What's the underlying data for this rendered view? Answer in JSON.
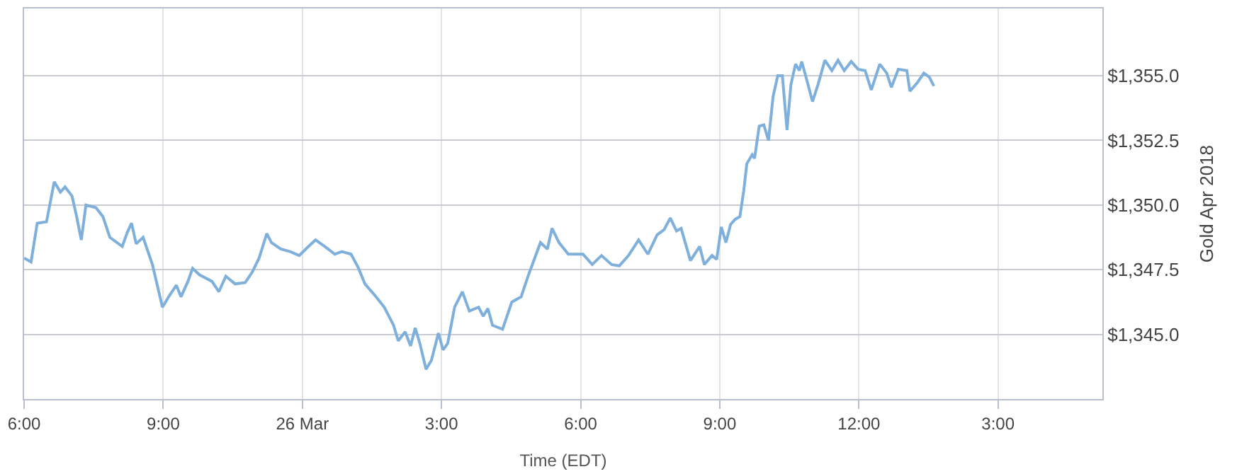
{
  "chart_data": {
    "type": "line",
    "xlabel": "Time (EDT)",
    "ylabel": "Gold Apr 2018",
    "grid": true,
    "xlim": [
      "--03-25T18:00",
      "--03-26T17:15"
    ],
    "xticks": [
      {
        "value": "--03-25T18:00",
        "label": "6:00"
      },
      {
        "value": "--03-25T21:00",
        "label": "9:00"
      },
      {
        "value": "--03-26T00:00",
        "label": "26 Mar"
      },
      {
        "value": "--03-26T03:00",
        "label": "3:00"
      },
      {
        "value": "--03-26T06:00",
        "label": "6:00"
      },
      {
        "value": "--03-26T09:00",
        "label": "9:00"
      },
      {
        "value": "--03-26T12:00",
        "label": "12:00"
      },
      {
        "value": "--03-26T15:00",
        "label": "3:00"
      }
    ],
    "ylim": [
      1342.5,
      1357.6
    ],
    "yticks": [
      {
        "value": 1345,
        "label": "$1,345.0"
      },
      {
        "value": 1347.5,
        "label": "$1,347.5"
      },
      {
        "value": 1350,
        "label": "$1,350.0"
      },
      {
        "value": 1352.5,
        "label": "$1,352.5"
      },
      {
        "value": 1355,
        "label": "$1,355.0"
      }
    ],
    "x": [
      "--03-25T18:00",
      "--03-25T18:09",
      "--03-25T18:17",
      "--03-25T18:29",
      "--03-25T18:39",
      "--03-25T18:47",
      "--03-25T18:53",
      "--03-25T19:02",
      "--03-25T19:08",
      "--03-25T19:14",
      "--03-25T19:20",
      "--03-25T19:33",
      "--03-25T19:42",
      "--03-25T19:51",
      "--03-25T20:07",
      "--03-25T20:13",
      "--03-25T20:19",
      "--03-25T20:25",
      "--03-25T20:34",
      "--03-25T20:46",
      "--03-25T20:59",
      "--03-25T21:08",
      "--03-25T21:17",
      "--03-25T21:23",
      "--03-25T21:32",
      "--03-25T21:38",
      "--03-25T21:47",
      "--03-25T22:03",
      "--03-25T22:12",
      "--03-25T22:21",
      "--03-25T22:33",
      "--03-25T22:46",
      "--03-25T22:55",
      "--03-25T23:04",
      "--03-25T23:14",
      "--03-25T23:20",
      "--03-25T23:32",
      "--03-25T23:44",
      "--03-25T23:56",
      "--03-26T00:08",
      "--03-26T00:17",
      "--03-26T00:29",
      "--03-26T00:42",
      "--03-26T00:51",
      "--03-26T01:03",
      "--03-26T01:12",
      "--03-26T01:21",
      "--03-26T01:34",
      "--03-26T01:46",
      "--03-26T01:58",
      "--03-26T02:04",
      "--03-26T02:13",
      "--03-26T02:20",
      "--03-26T02:26",
      "--03-26T02:32",
      "--03-26T02:40",
      "--03-26T02:47",
      "--03-26T02:56",
      "--03-26T03:02",
      "--03-26T03:08",
      "--03-26T03:17",
      "--03-26T03:27",
      "--03-26T03:36",
      "--03-26T03:48",
      "--03-26T03:54",
      "--03-26T04:00",
      "--03-26T04:06",
      "--03-26T04:19",
      "--03-26T04:31",
      "--03-26T04:43",
      "--03-26T04:52",
      "--03-26T05:08",
      "--03-26T05:17",
      "--03-26T05:23",
      "--03-26T05:32",
      "--03-26T05:44",
      "--03-26T06:03",
      "--03-26T06:15",
      "--03-26T06:27",
      "--03-26T06:40",
      "--03-26T06:50",
      "--03-26T07:02",
      "--03-26T07:15",
      "--03-26T07:27",
      "--03-26T07:39",
      "--03-26T07:48",
      "--03-26T07:56",
      "--03-26T08:04",
      "--03-26T08:10",
      "--03-26T08:22",
      "--03-26T08:34",
      "--03-26T08:40",
      "--03-26T08:50",
      "--03-26T08:56",
      "--03-26T09:02",
      "--03-26T09:08",
      "--03-26T09:14",
      "--03-26T09:20",
      "--03-26T09:26",
      "--03-26T09:31",
      "--03-26T09:35",
      "--03-26T09:42",
      "--03-26T09:45",
      "--03-26T09:51",
      "--03-26T09:57",
      "--03-26T10:03",
      "--03-26T10:09",
      "--03-26T10:15",
      "--03-26T10:21",
      "--03-26T10:27",
      "--03-26T10:32",
      "--03-26T10:38",
      "--03-26T10:43",
      "--03-26T10:46",
      "--03-26T10:52",
      "--03-26T11:00",
      "--03-26T11:07",
      "--03-26T11:16",
      "--03-26T11:25",
      "--03-26T11:33",
      "--03-26T11:41",
      "--03-26T11:50",
      "--03-26T11:59",
      "--03-26T12:08",
      "--03-26T12:16",
      "--03-26T12:27",
      "--03-26T12:36",
      "--03-26T12:42",
      "--03-26T12:51",
      "--03-26T13:02",
      "--03-26T13:06",
      "--03-26T13:16",
      "--03-26T13:24",
      "--03-26T13:31",
      "--03-26T13:37"
    ],
    "series": [
      {
        "color": "#7fb0dc",
        "values": [
          1347.95,
          1347.8,
          1349.3,
          1349.35,
          1350.9,
          1350.5,
          1350.7,
          1350.35,
          1349.55,
          1348.65,
          1350.0,
          1349.9,
          1349.55,
          1348.75,
          1348.4,
          1348.9,
          1349.3,
          1348.5,
          1348.75,
          1347.7,
          1346.05,
          1346.5,
          1346.9,
          1346.45,
          1347.05,
          1347.55,
          1347.3,
          1347.05,
          1346.65,
          1347.25,
          1346.95,
          1347.0,
          1347.4,
          1347.95,
          1348.9,
          1348.55,
          1348.3,
          1348.2,
          1348.05,
          1348.4,
          1348.65,
          1348.4,
          1348.1,
          1348.2,
          1348.1,
          1347.6,
          1346.95,
          1346.5,
          1346.05,
          1345.35,
          1344.75,
          1345.1,
          1344.55,
          1345.25,
          1344.65,
          1343.65,
          1344.0,
          1345.05,
          1344.4,
          1344.65,
          1346.05,
          1346.65,
          1345.9,
          1346.05,
          1345.7,
          1346.0,
          1345.35,
          1345.2,
          1346.25,
          1346.45,
          1347.25,
          1348.55,
          1348.3,
          1349.1,
          1348.55,
          1348.1,
          1348.1,
          1347.7,
          1348.05,
          1347.7,
          1347.65,
          1348.05,
          1348.65,
          1348.1,
          1348.85,
          1349.05,
          1349.5,
          1349.0,
          1349.1,
          1347.85,
          1348.4,
          1347.7,
          1348.05,
          1347.9,
          1349.15,
          1348.55,
          1349.25,
          1349.45,
          1349.55,
          1350.55,
          1351.6,
          1351.95,
          1351.8,
          1353.05,
          1353.1,
          1352.5,
          1354.2,
          1355.0,
          1355.0,
          1352.9,
          1354.65,
          1355.45,
          1355.2,
          1355.55,
          1354.9,
          1354.0,
          1354.65,
          1355.6,
          1355.2,
          1355.6,
          1355.2,
          1355.55,
          1355.25,
          1355.2,
          1354.45,
          1355.45,
          1355.1,
          1354.55,
          1355.25,
          1355.2,
          1354.4,
          1354.75,
          1355.1,
          1354.95,
          1354.6
        ]
      }
    ]
  }
}
